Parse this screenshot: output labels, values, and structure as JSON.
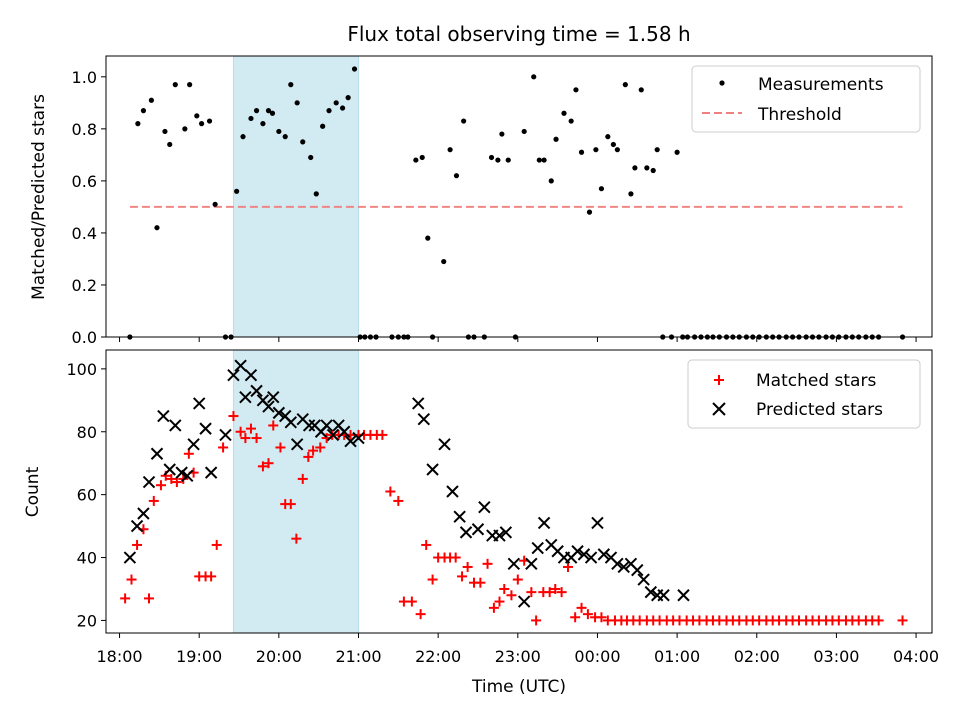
{
  "figure": {
    "title": "Flux total observing time = 1.58 h"
  },
  "chart_data": [
    {
      "type": "scatter",
      "ylabel": "Matched/Predicted stars",
      "xlabel": "",
      "xlim_hours": [
        17.83,
        28.2
      ],
      "ylim": [
        0,
        1.08
      ],
      "yticks": [
        0.0,
        0.2,
        0.4,
        0.6,
        0.8,
        1.0
      ],
      "ytick_labels": [
        "0.0",
        "0.2",
        "0.4",
        "0.6",
        "0.8",
        "1.0"
      ],
      "grid": false,
      "legend_position": "top-right",
      "highlight_span": {
        "from_hours": 19.43,
        "to_hours": 21.0,
        "color": "#add8e6"
      },
      "series": [
        {
          "name": "Measurements",
          "marker": "dot",
          "color": "#000000",
          "x_hours": [
            18.13,
            18.23,
            18.3,
            18.4,
            18.47,
            18.57,
            18.63,
            18.7,
            18.82,
            18.88,
            18.97,
            19.03,
            19.13,
            19.2,
            19.33,
            19.4,
            19.47,
            19.55,
            19.65,
            19.72,
            19.8,
            19.87,
            19.92,
            20.0,
            20.08,
            20.15,
            20.23,
            20.3,
            20.4,
            20.47,
            20.55,
            20.63,
            20.72,
            20.8,
            20.87,
            20.95,
            21.02,
            21.08,
            21.15,
            21.22,
            21.42,
            21.5,
            21.57,
            21.62,
            21.72,
            21.8,
            21.87,
            21.93,
            22.07,
            22.15,
            22.23,
            22.32,
            22.38,
            22.45,
            22.58,
            22.67,
            22.75,
            22.8,
            22.88,
            22.97,
            23.08,
            23.2,
            23.27,
            23.33,
            23.42,
            23.48,
            23.58,
            23.67,
            23.73,
            23.8,
            23.9,
            23.98,
            24.05,
            24.13,
            24.2,
            24.25,
            24.35,
            24.42,
            24.47,
            24.55,
            24.62,
            24.7,
            24.75,
            24.82,
            24.93,
            25.0,
            25.07,
            25.13,
            25.22,
            25.3,
            25.38,
            25.45,
            25.53,
            25.62,
            25.7,
            25.78,
            25.87,
            25.95,
            26.03,
            26.12,
            26.2,
            26.28,
            26.37,
            26.45,
            26.53,
            26.62,
            26.7,
            26.78,
            26.87,
            26.95,
            27.03,
            27.12,
            27.2,
            27.28,
            27.37,
            27.45,
            27.53,
            27.83
          ],
          "y": [
            0.0,
            0.82,
            0.87,
            0.91,
            0.42,
            0.79,
            0.74,
            0.97,
            0.8,
            0.97,
            0.85,
            0.82,
            0.83,
            0.51,
            0.0,
            0.0,
            0.56,
            0.77,
            0.84,
            0.87,
            0.82,
            0.87,
            0.86,
            0.79,
            0.77,
            0.97,
            0.9,
            0.75,
            0.69,
            0.55,
            0.81,
            0.87,
            0.9,
            0.88,
            0.92,
            1.03,
            0.0,
            0.0,
            0.0,
            0.0,
            0.0,
            0.0,
            0.0,
            0.0,
            0.68,
            0.69,
            0.38,
            0.0,
            0.29,
            0.72,
            0.62,
            0.83,
            0.0,
            0.0,
            0.0,
            0.69,
            0.68,
            0.78,
            0.68,
            0.0,
            0.79,
            1.0,
            0.68,
            0.68,
            0.6,
            0.76,
            0.86,
            0.83,
            0.95,
            0.71,
            0.48,
            0.72,
            0.57,
            0.77,
            0.74,
            0.72,
            0.97,
            0.55,
            0.65,
            0.95,
            0.65,
            0.64,
            0.72,
            0.0,
            0.0,
            0.71,
            0.0,
            0.0,
            0.0,
            0.0,
            0.0,
            0.0,
            0.0,
            0.0,
            0.0,
            0.0,
            0.0,
            0.0,
            0.0,
            0.0,
            0.0,
            0.0,
            0.0,
            0.0,
            0.0,
            0.0,
            0.0,
            0.0,
            0.0,
            0.0,
            0.0,
            0.0,
            0.0,
            0.0,
            0.0,
            0.0,
            0.0,
            0.0
          ]
        },
        {
          "name": "Threshold",
          "line_style": "dashed",
          "color": "#f08080",
          "x_hours": [
            18.13,
            27.83
          ],
          "y": [
            0.5,
            0.5
          ]
        }
      ]
    },
    {
      "type": "scatter",
      "ylabel": "Count",
      "xlabel": "Time (UTC)",
      "xlim_hours": [
        17.83,
        28.2
      ],
      "ylim": [
        16,
        106
      ],
      "yticks": [
        20,
        40,
        60,
        80,
        100
      ],
      "ytick_labels": [
        "20",
        "40",
        "60",
        "80",
        "100"
      ],
      "xticks_hours": [
        18,
        19,
        20,
        21,
        22,
        23,
        24,
        25,
        26,
        27,
        28
      ],
      "xtick_labels": [
        "18:00",
        "19:00",
        "20:00",
        "21:00",
        "22:00",
        "23:00",
        "00:00",
        "01:00",
        "02:00",
        "03:00",
        "04:00"
      ],
      "grid": false,
      "legend_position": "top-right",
      "highlight_span": {
        "from_hours": 19.43,
        "to_hours": 21.0,
        "color": "#add8e6"
      },
      "series": [
        {
          "name": "Matched stars",
          "marker": "plus",
          "color": "#ff0000",
          "x_hours": [
            18.07,
            18.15,
            18.22,
            18.3,
            18.37,
            18.43,
            18.52,
            18.58,
            18.65,
            18.72,
            18.8,
            18.87,
            18.93,
            19.0,
            19.08,
            19.15,
            19.22,
            19.3,
            19.43,
            19.52,
            19.58,
            19.65,
            19.72,
            19.8,
            19.87,
            19.93,
            20.02,
            20.08,
            20.15,
            20.22,
            20.3,
            20.37,
            20.43,
            20.52,
            20.6,
            20.67,
            20.75,
            20.82,
            20.9,
            21.0,
            21.07,
            21.15,
            21.23,
            21.3,
            21.4,
            21.5,
            21.57,
            21.67,
            21.78,
            21.85,
            21.93,
            22.0,
            22.08,
            22.15,
            22.22,
            22.3,
            22.37,
            22.45,
            22.53,
            22.62,
            22.7,
            22.77,
            22.83,
            22.92,
            23.0,
            23.08,
            23.17,
            23.23,
            23.32,
            23.4,
            23.47,
            23.55,
            23.63,
            23.72,
            23.8,
            23.88,
            23.97,
            24.05,
            24.13,
            24.22,
            24.3,
            24.37,
            24.45,
            24.53,
            24.62,
            24.7,
            24.78,
            24.87,
            24.95,
            25.03,
            25.12,
            25.2,
            25.28,
            25.37,
            25.45,
            25.53,
            25.62,
            25.7,
            25.78,
            25.87,
            25.95,
            26.03,
            26.12,
            26.2,
            26.28,
            26.37,
            26.45,
            26.53,
            26.62,
            26.7,
            26.78,
            26.87,
            26.95,
            27.03,
            27.12,
            27.2,
            27.28,
            27.37,
            27.45,
            27.53,
            27.83
          ],
          "y": [
            27,
            33,
            44,
            49,
            27,
            58,
            63,
            66,
            65,
            64,
            65,
            73,
            67,
            34,
            34,
            34,
            44,
            75,
            85,
            80,
            78,
            81,
            78,
            69,
            70,
            82,
            75,
            57,
            57,
            46,
            65,
            72,
            74,
            75,
            78,
            79,
            79,
            79,
            79,
            79,
            79,
            79,
            79,
            79,
            61,
            58,
            26,
            26,
            22,
            44,
            33,
            40,
            40,
            40,
            40,
            34,
            37,
            32,
            32,
            38,
            24,
            26,
            30,
            28,
            33,
            39,
            29,
            20,
            29,
            29,
            30,
            29,
            37,
            21,
            24,
            22,
            21,
            21,
            20,
            20,
            20,
            20,
            20,
            20,
            20,
            20,
            20,
            20,
            20,
            20,
            20,
            20,
            20,
            20,
            20,
            20,
            20,
            20,
            20,
            20,
            20,
            20,
            20,
            20,
            20,
            20,
            20,
            20,
            20,
            20,
            20,
            20,
            20,
            20,
            20,
            20,
            20,
            20,
            20,
            20,
            20
          ]
        },
        {
          "name": "Predicted stars",
          "marker": "x",
          "color": "#000000",
          "x_hours": [
            18.13,
            18.22,
            18.3,
            18.37,
            18.47,
            18.55,
            18.63,
            18.7,
            18.78,
            18.85,
            18.93,
            19.0,
            19.08,
            19.15,
            19.33,
            19.43,
            19.52,
            19.58,
            19.65,
            19.72,
            19.8,
            19.87,
            19.93,
            20.0,
            20.08,
            20.15,
            20.23,
            20.3,
            20.38,
            20.45,
            20.53,
            20.6,
            20.68,
            20.75,
            20.82,
            20.9,
            21.0,
            21.75,
            21.82,
            21.93,
            22.08,
            22.18,
            22.27,
            22.35,
            22.5,
            22.58,
            22.68,
            22.77,
            22.85,
            22.95,
            23.08,
            23.17,
            23.25,
            23.33,
            23.42,
            23.5,
            23.58,
            23.67,
            23.75,
            23.83,
            23.92,
            24.0,
            24.08,
            24.17,
            24.25,
            24.33,
            24.42,
            24.5,
            24.58,
            24.67,
            24.75,
            24.83,
            25.08
          ],
          "y": [
            40,
            50,
            54,
            64,
            73,
            85,
            68,
            82,
            67,
            66,
            76,
            89,
            81,
            67,
            79,
            98,
            101,
            91,
            98,
            93,
            90,
            88,
            91,
            86,
            85,
            83,
            76,
            84,
            82,
            82,
            80,
            82,
            79,
            82,
            80,
            77,
            78,
            89,
            84,
            68,
            76,
            61,
            53,
            48,
            49,
            56,
            47,
            47,
            48,
            38,
            26,
            38,
            43,
            51,
            44,
            42,
            40,
            40,
            42,
            41,
            40,
            51,
            41,
            40,
            38,
            37,
            38,
            36,
            33,
            29,
            28,
            28,
            28
          ]
        }
      ]
    }
  ]
}
